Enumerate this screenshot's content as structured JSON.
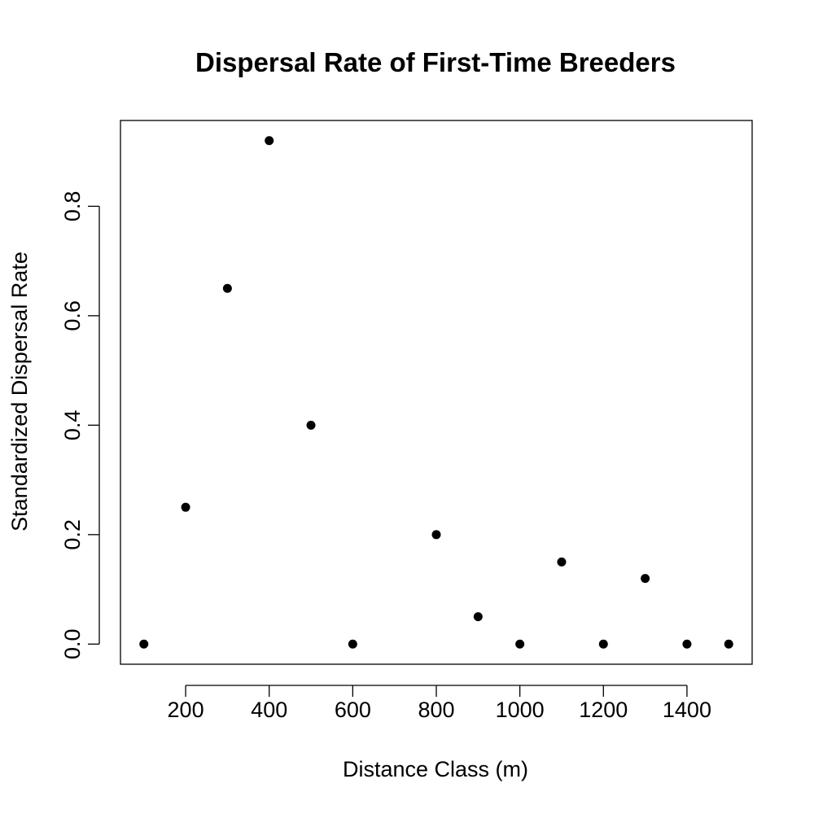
{
  "chart_data": {
    "type": "scatter",
    "title": "Dispersal Rate of First-Time Breeders",
    "xlabel": "Distance Class (m)",
    "ylabel": "Standardized Dispersal Rate",
    "x": [
      100,
      200,
      300,
      400,
      500,
      600,
      800,
      900,
      1000,
      1100,
      1200,
      1300,
      1400,
      1500
    ],
    "y": [
      0.0,
      0.25,
      0.65,
      0.92,
      0.4,
      0.0,
      0.2,
      0.05,
      0.0,
      0.15,
      0.0,
      0.12,
      0.0,
      0.0
    ],
    "xlim": [
      44,
      1556
    ],
    "ylim": [
      -0.0368,
      0.9568
    ],
    "xticks": [
      200,
      400,
      600,
      800,
      1000,
      1200,
      1400
    ],
    "xtick_labels": [
      "200",
      "400",
      "600",
      "800",
      "1000",
      "1200",
      "1400"
    ],
    "yticks": [
      0.0,
      0.2,
      0.4,
      0.6,
      0.8
    ],
    "ytick_labels": [
      "0.0",
      "0.2",
      "0.4",
      "0.6",
      "0.8"
    ],
    "grid": false,
    "legend": "none",
    "point_color": "#000000"
  }
}
